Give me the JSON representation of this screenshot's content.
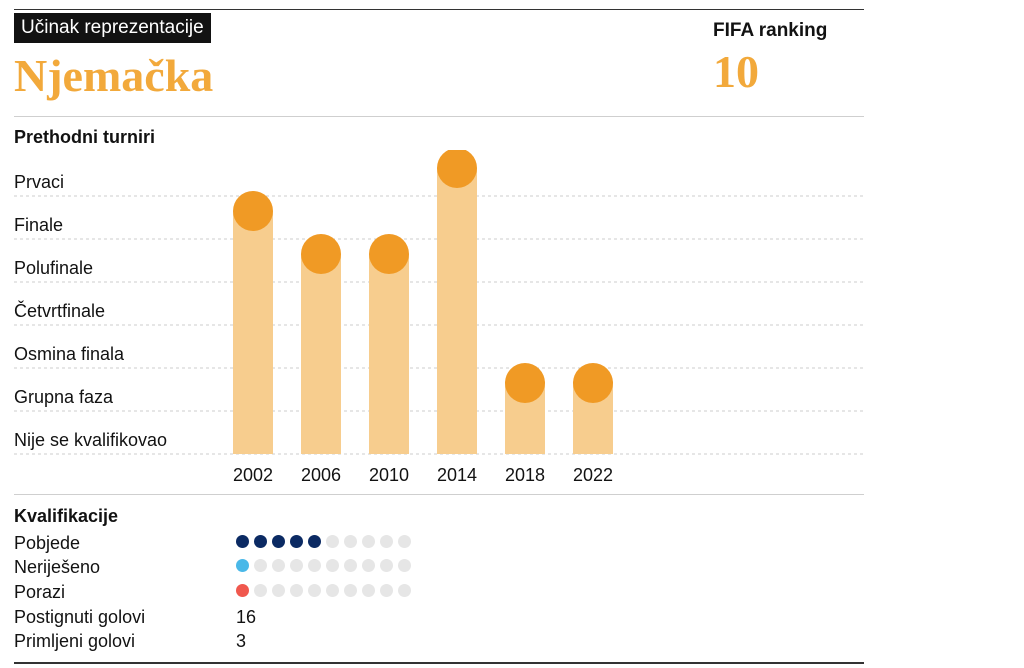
{
  "header": {
    "kicker": "Učinak reprezentacije",
    "team": "Njemačka",
    "ranking_label": "FIFA ranking",
    "ranking_value": "10"
  },
  "tournaments": {
    "title": "Prethodni turniri"
  },
  "chart_data": {
    "type": "bar",
    "categories": [
      "2002",
      "2006",
      "2010",
      "2014",
      "2018",
      "2022"
    ],
    "levels": [
      "Nije se kvalifikovao",
      "Grupna faza",
      "Osmina finala",
      "Četvrtfinale",
      "Polufinale",
      "Finale",
      "Prvaci"
    ],
    "values": [
      "Finale",
      "Polufinale",
      "Polufinale",
      "Prvaci",
      "Grupna faza",
      "Grupna faza"
    ],
    "colors": {
      "bar": "#f7cd8e",
      "marker": "#f09a25",
      "grid": "#cccccc"
    }
  },
  "qualification": {
    "title": "Kvalifikacije",
    "total_dots": 10,
    "wins": {
      "label": "Pobjede",
      "count": 5,
      "color": "#0b2a63"
    },
    "draws": {
      "label": "Neriješeno",
      "count": 1,
      "color": "#4ab8e8"
    },
    "losses": {
      "label": "Porazi",
      "count": 1,
      "color": "#f0584e"
    },
    "goals_for": {
      "label": "Postignuti golovi",
      "value": "16"
    },
    "goals_against": {
      "label": "Primljeni golovi",
      "value": "3"
    }
  }
}
